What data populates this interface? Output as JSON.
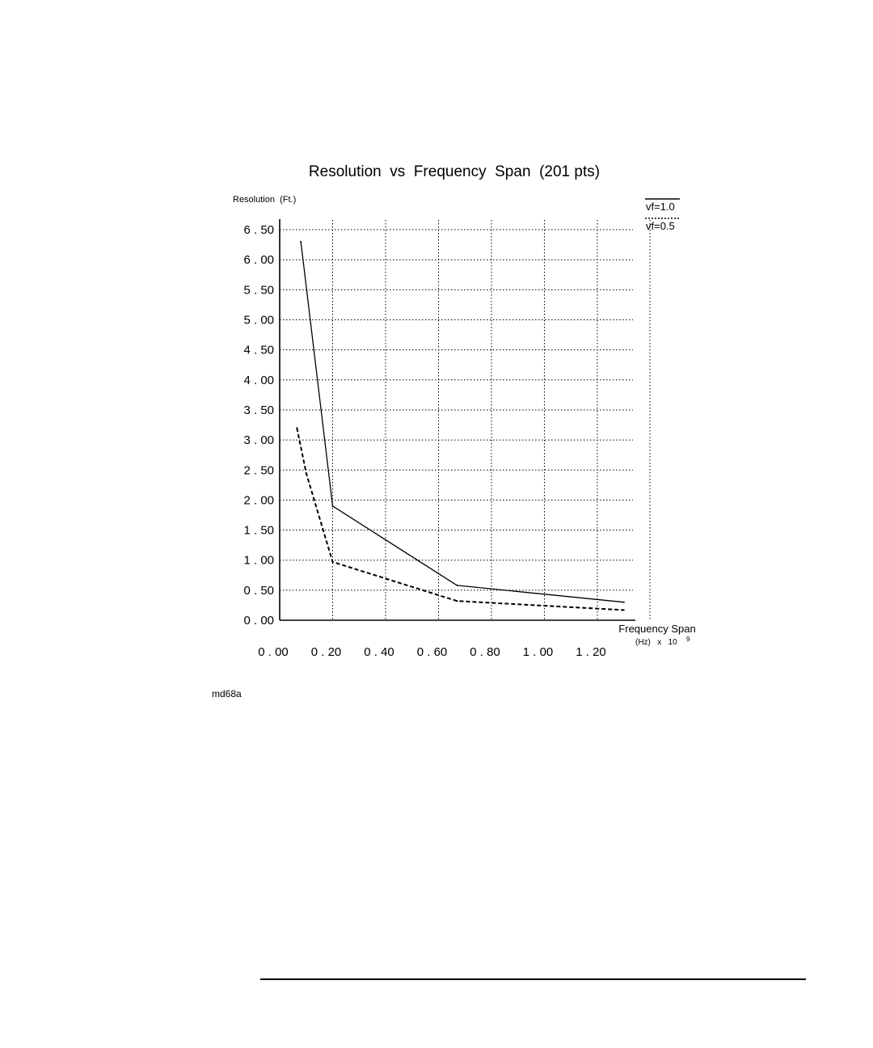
{
  "chart_data": {
    "type": "line",
    "title": "Resolution  vs  Frequency  Span  (201 pts)",
    "ylabel": "Resolution  (Ft.)",
    "xlabel": "Frequency Span",
    "xlabel_unit": "(Hz)   x   10",
    "xlabel_exponent": "9",
    "xlim": [
      0,
      1.34
    ],
    "ylim": [
      0,
      6.5
    ],
    "grid": true,
    "legend_position": "top-right",
    "x_ticks": [
      {
        "value": 0.0,
        "label": "0 . 00"
      },
      {
        "value": 0.2,
        "label": "0 . 20"
      },
      {
        "value": 0.4,
        "label": "0 . 40"
      },
      {
        "value": 0.6,
        "label": "0 . 60"
      },
      {
        "value": 0.8,
        "label": "0 . 80"
      },
      {
        "value": 1.0,
        "label": "1 . 00"
      },
      {
        "value": 1.2,
        "label": "1 . 20"
      }
    ],
    "y_ticks": [
      {
        "value": 0.0,
        "label": "0 . 00"
      },
      {
        "value": 0.5,
        "label": "0 . 50"
      },
      {
        "value": 1.0,
        "label": "1 . 00"
      },
      {
        "value": 1.5,
        "label": "1 . 50"
      },
      {
        "value": 2.0,
        "label": "2 . 00"
      },
      {
        "value": 2.5,
        "label": "2 . 50"
      },
      {
        "value": 3.0,
        "label": "3 . 00"
      },
      {
        "value": 3.5,
        "label": "3 . 50"
      },
      {
        "value": 4.0,
        "label": "4 . 00"
      },
      {
        "value": 4.5,
        "label": "4 . 50"
      },
      {
        "value": 5.0,
        "label": "5 . 00"
      },
      {
        "value": 5.5,
        "label": "5 . 50"
      },
      {
        "value": 6.0,
        "label": "6 . 00"
      },
      {
        "value": 6.5,
        "label": "6 . 50"
      }
    ],
    "series": [
      {
        "name": "vf=1.0",
        "style": "solid",
        "x": [
          0.08,
          0.2,
          0.67,
          1.3
        ],
        "y": [
          6.3,
          1.9,
          0.58,
          0.3
        ]
      },
      {
        "name": "vf=0.5",
        "style": "dashed",
        "x": [
          0.065,
          0.1,
          0.2,
          0.67,
          1.3
        ],
        "y": [
          3.2,
          2.45,
          0.97,
          0.32,
          0.17
        ]
      }
    ]
  },
  "figure_id": "md68a"
}
